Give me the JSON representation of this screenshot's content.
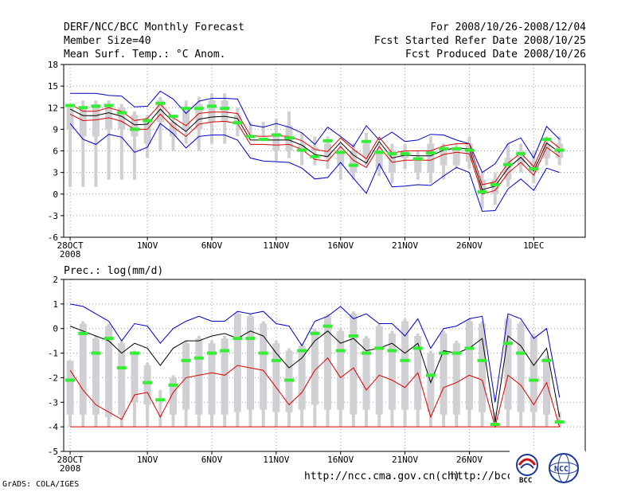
{
  "header": {
    "left": [
      "DERF/NCC/BCC Monthly Forecast",
      "Member Size=40",
      "Mean Surf. Temp.: °C Anom."
    ],
    "right": [
      "For 2008/10/26-2008/12/04",
      "Fcst Started Refer Date 2008/10/25",
      "Fcst Produced Date 2008/10/26"
    ]
  },
  "footer": {
    "credit": "GrADS: COLA/IGES",
    "url1": "http://ncc.cma.gov.cn(ch)",
    "url2": "http://bcc.c",
    "logo1": "BCC",
    "logo2": "NCC"
  },
  "colors": {
    "grey": "#d0d0d4",
    "green": "#33ee33",
    "blue": "#0000cc",
    "red": "#dd0000",
    "black": "#000000"
  },
  "chart_data": [
    {
      "type": "box",
      "title": "Mean Surf. Temp.: °C Anom.",
      "ylim": [
        -6,
        18
      ],
      "yticks": [
        -6,
        -3,
        0,
        3,
        6,
        9,
        12,
        15,
        18
      ],
      "xlim": [
        -0.5,
        40
      ],
      "xticks": [
        {
          "i": 0,
          "label": "28OCT",
          "label2": "2008"
        },
        {
          "i": 6,
          "label": "1NOV"
        },
        {
          "i": 11,
          "label": "6NOV"
        },
        {
          "i": 16,
          "label": "11NOV"
        },
        {
          "i": 21,
          "label": "16NOV"
        },
        {
          "i": 26,
          "label": "21NOV"
        },
        {
          "i": 31,
          "label": "26NOV"
        },
        {
          "i": 36,
          "label": "1DEC"
        }
      ],
      "whisker_low": [
        1,
        1,
        1,
        2,
        2,
        2,
        5,
        6,
        6,
        7,
        6,
        7,
        7,
        8,
        8,
        8,
        4.5,
        5,
        4,
        4,
        3.5,
        2,
        2,
        4,
        2.5,
        1.5,
        3.5,
        2,
        1.5,
        2,
        3.5,
        3.5,
        -2,
        -1.5,
        1,
        3,
        1.5,
        4,
        4
      ],
      "box_low": [
        9,
        8,
        8,
        9,
        9,
        8,
        7,
        10,
        8,
        9,
        9,
        10,
        10,
        10,
        10,
        9,
        6,
        6,
        6,
        6,
        5,
        4,
        3,
        5,
        3.5,
        3,
        5,
        3,
        3,
        4,
        4,
        4.5,
        0,
        0,
        2,
        4,
        3,
        5,
        5
      ],
      "box_high": [
        12,
        12,
        12.5,
        12.5,
        12,
        11,
        10,
        13,
        10,
        12,
        12.5,
        13,
        13,
        11,
        8.5,
        8.5,
        8.5,
        9.5,
        7,
        6.5,
        7,
        6,
        6,
        7,
        6,
        6,
        6,
        5,
        7,
        6,
        6.5,
        7,
        2,
        2,
        5,
        6,
        4.5,
        7,
        7
      ],
      "whisker_high": [
        12.5,
        13,
        13,
        13,
        12.5,
        11.5,
        11,
        13.5,
        11,
        13,
        13.5,
        14,
        14,
        12,
        10,
        10,
        10.5,
        11.5,
        8.5,
        8,
        8,
        7,
        7,
        8.5,
        7,
        7,
        7,
        6,
        8,
        7,
        7,
        8,
        3,
        3,
        7,
        7,
        6,
        8,
        8
      ],
      "median": [
        12.3,
        12.0,
        12.2,
        12.3,
        11.3,
        9.0,
        10.2,
        12.6,
        10.8,
        11.9,
        11.9,
        12.2,
        11.9,
        9.9,
        8.0,
        7.6,
        8.2,
        7.8,
        6.1,
        5.2,
        7.4,
        5.8,
        4.0,
        7.3,
        5.8,
        5.6,
        5.6,
        4.9,
        5.7,
        6.3,
        6.3,
        6.1,
        0.3,
        1.3,
        4.1,
        5.6,
        3.5,
        7.6,
        6.1
      ],
      "series": [
        {
          "name": "upper",
          "color": "blue",
          "values": [
            14,
            14,
            14,
            13.7,
            13.6,
            12.1,
            12.2,
            14.3,
            13.2,
            11.2,
            12.9,
            13.3,
            13.3,
            13.2,
            9.6,
            9.3,
            9.8,
            9.3,
            8.5,
            6.9,
            9.3,
            8.0,
            6.6,
            9.5,
            7.5,
            8.6,
            7.3,
            7.5,
            8.3,
            8.2,
            7.5,
            7.0,
            3.0,
            4.2,
            7.0,
            7.8,
            5.0,
            9.4,
            7.6
          ]
        },
        {
          "name": "mean",
          "color": "black",
          "values": [
            11.8,
            10.9,
            10.9,
            11.3,
            10.8,
            9.6,
            9.7,
            11.8,
            10.0,
            8.7,
            10.4,
            10.7,
            10.8,
            10.5,
            7.5,
            7.5,
            7.5,
            7.5,
            6.8,
            5.5,
            5.2,
            7.2,
            5.4,
            4.3,
            7.3,
            5.0,
            5.4,
            5.3,
            5.3,
            6.1,
            6.4,
            6.3,
            0.6,
            1.1,
            3.6,
            5.1,
            3.2,
            7.1,
            5.8
          ]
        },
        {
          "name": "pos_spread",
          "color": "red",
          "values": [
            12.5,
            11.5,
            11.5,
            12.0,
            11.5,
            10.2,
            10.5,
            12.5,
            10.6,
            9.5,
            11.2,
            11.4,
            11.4,
            11.2,
            8.1,
            8.0,
            8.1,
            8.0,
            7.4,
            6.2,
            5.9,
            7.8,
            6.2,
            4.9,
            7.9,
            5.7,
            6.0,
            6.0,
            6.0,
            6.7,
            7.0,
            7.0,
            1.3,
            1.7,
            4.3,
            5.7,
            3.8,
            7.8,
            6.4
          ]
        },
        {
          "name": "neg_spread",
          "color": "red",
          "values": [
            11.1,
            10.2,
            10.3,
            10.6,
            10.1,
            9.0,
            9.0,
            11.1,
            9.3,
            8.0,
            9.7,
            10.0,
            10.1,
            9.8,
            6.9,
            6.9,
            6.8,
            6.9,
            6.2,
            4.8,
            4.6,
            6.6,
            4.7,
            3.7,
            6.6,
            4.4,
            4.7,
            4.7,
            4.7,
            5.5,
            5.8,
            5.6,
            0.0,
            0.5,
            2.9,
            4.4,
            2.6,
            6.5,
            5.2
          ]
        },
        {
          "name": "lower",
          "color": "blue",
          "values": [
            9.8,
            7.6,
            6.9,
            8.3,
            7.9,
            5.8,
            6.5,
            9.8,
            8.4,
            6.4,
            8.0,
            8.2,
            8.2,
            7.5,
            5.0,
            4.6,
            4.5,
            4.4,
            3.6,
            2.1,
            2.3,
            4.4,
            2.2,
            0.1,
            4.2,
            1.0,
            1.1,
            1.3,
            1.2,
            2.5,
            3.7,
            3.0,
            -2.4,
            -2.3,
            0.7,
            2.1,
            0.5,
            3.6,
            3.0
          ]
        }
      ]
    },
    {
      "type": "box",
      "title": "Prec.: log(mm/d)",
      "ylim": [
        -5,
        2
      ],
      "yticks": [
        -5,
        -4,
        -3,
        -2,
        -1,
        0,
        1,
        2
      ],
      "xlim": [
        -0.5,
        40
      ],
      "xticks": [
        {
          "i": 0,
          "label": "28OCT",
          "label2": "2008"
        },
        {
          "i": 6,
          "label": "1NOV"
        },
        {
          "i": 11,
          "label": "6NOV"
        },
        {
          "i": 16,
          "label": "11NOV"
        },
        {
          "i": 21,
          "label": "16NOV"
        },
        {
          "i": 26,
          "label": "21NOV"
        },
        {
          "i": 31,
          "label": "26NOV"
        },
        {
          "i": 36,
          "label": "1DEC"
        }
      ],
      "whisker_low": [
        -4,
        -4,
        -4,
        -4,
        -4,
        -4,
        -4,
        -4,
        -4,
        -4,
        -4,
        -4,
        -4,
        -4,
        -4,
        -4,
        -4,
        -4,
        -4,
        -4,
        -4,
        -4,
        -4,
        -4,
        -4,
        -4,
        -4,
        -4,
        -4,
        -4,
        -4,
        -4,
        -4,
        -4,
        -4,
        -4,
        -4,
        -4,
        -4
      ],
      "box_low": [
        -3.5,
        -3.5,
        -3.5,
        -3.6,
        -3.5,
        -3.0,
        -3.1,
        -2.6,
        -3.5,
        -3.3,
        -3.5,
        -3.5,
        -3.5,
        -3.4,
        -3.3,
        -3.3,
        -3.4,
        -3.4,
        -3.3,
        -3.1,
        -3.3,
        -3.3,
        -3.5,
        -3.3,
        -3.5,
        -3.3,
        -3.3,
        -3.3,
        -3.4,
        -3.5,
        -3.5,
        -3.3,
        -3.4,
        -3.3,
        -3.3,
        -3.4,
        -3.4,
        -3.5,
        -3.5
      ],
      "box_high": [
        -1.3,
        0.2,
        -0.4,
        0.1,
        -0.6,
        -1.0,
        -1.5,
        -2.6,
        -2.0,
        -0.6,
        -0.4,
        -0.6,
        -0.4,
        0.6,
        0.5,
        0.2,
        -0.6,
        -0.9,
        -0.7,
        -0.1,
        0.5,
        -0.1,
        0.6,
        -0.4,
        0.1,
        -0.2,
        0.3,
        -0.3,
        -1.0,
        -0.2,
        -0.6,
        0.3,
        0.2,
        -3.5,
        0.4,
        0.2,
        -0.3,
        -1.2,
        -3.5
      ],
      "whisker_high": [
        -1.3,
        0.3,
        -0.3,
        0.2,
        -0.5,
        -0.9,
        -1.4,
        -2.5,
        -1.9,
        -0.5,
        -0.3,
        -0.5,
        -0.3,
        0.7,
        0.6,
        0.3,
        -0.5,
        -0.8,
        -0.6,
        0.0,
        0.6,
        0.0,
        0.7,
        -0.3,
        0.2,
        -0.1,
        0.4,
        -0.2,
        -0.9,
        -0.1,
        -0.5,
        0.4,
        0.3,
        -3.4,
        0.5,
        0.3,
        -0.2,
        -1.1,
        -3.4
      ],
      "median": [
        -2.1,
        -0.2,
        -1.0,
        -0.4,
        -1.6,
        -1.0,
        -2.2,
        -2.9,
        -2.3,
        -1.3,
        -1.2,
        -1.0,
        -0.9,
        -0.4,
        -0.4,
        -1.0,
        -1.3,
        -2.1,
        -0.9,
        -0.2,
        0.1,
        -0.9,
        -0.3,
        -1.0,
        -0.8,
        -0.9,
        -1.3,
        -0.8,
        -1.9,
        -1.0,
        -1.0,
        -0.8,
        -1.3,
        -3.9,
        -0.6,
        -1.0,
        -2.1,
        -1.3,
        -3.8
      ],
      "series": [
        {
          "name": "upper",
          "color": "blue",
          "values": [
            1.0,
            0.9,
            0.6,
            0.3,
            -0.5,
            0.2,
            0.1,
            -0.6,
            0.0,
            0.3,
            0.5,
            0.3,
            0.3,
            0.7,
            0.6,
            0.7,
            0.2,
            0.1,
            -0.7,
            0.3,
            0.5,
            0.9,
            0.4,
            0.6,
            0.2,
            0.2,
            -0.3,
            0.4,
            -0.8,
            0.0,
            0.1,
            0.4,
            0.5,
            -3.0,
            0.6,
            0.4,
            -0.4,
            0.0,
            -2.8
          ]
        },
        {
          "name": "mean",
          "color": "black",
          "values": [
            0.1,
            -0.1,
            -0.3,
            -0.5,
            -1.0,
            -0.6,
            -0.8,
            -1.5,
            -0.8,
            -0.5,
            -0.5,
            -0.3,
            -0.2,
            -0.4,
            -0.1,
            -0.3,
            -1.0,
            -1.6,
            -1.2,
            -0.5,
            -0.1,
            -0.6,
            -0.4,
            -0.9,
            -0.8,
            -0.6,
            -1.0,
            -0.6,
            -2.2,
            -0.9,
            -1.0,
            -0.8,
            -0.4,
            -3.8,
            -0.3,
            -0.7,
            -1.5,
            -0.8,
            -3.6
          ]
        },
        {
          "name": "pos_spread",
          "color": "red",
          "values": [
            -1.7,
            -2.5,
            -3.1,
            -3.4,
            -3.7,
            -2.7,
            -2.6,
            -3.6,
            -2.6,
            -2.0,
            -1.9,
            -1.8,
            -1.9,
            -1.5,
            -1.6,
            -1.7,
            -2.4,
            -3.1,
            -2.6,
            -1.7,
            -1.2,
            -2.0,
            -1.6,
            -2.5,
            -1.9,
            -2.1,
            -2.4,
            -1.8,
            -3.6,
            -2.4,
            -2.2,
            -1.9,
            -2.1,
            -4.0,
            -1.9,
            -2.3,
            -3.1,
            -2.2,
            -4.0
          ]
        },
        {
          "name": "floor",
          "color": "red",
          "values": [
            -4,
            -4,
            -4,
            -4,
            -4,
            -4,
            -4,
            -4,
            -4,
            -4,
            -4,
            -4,
            -4,
            -4,
            -4,
            -4,
            -4,
            -4,
            -4,
            -4,
            -4,
            -4,
            -4,
            -4,
            -4,
            -4,
            -4,
            -4,
            -4,
            -4,
            -4,
            -4,
            -4,
            -4,
            -4,
            -4,
            -4,
            -4,
            -4
          ]
        }
      ]
    }
  ]
}
